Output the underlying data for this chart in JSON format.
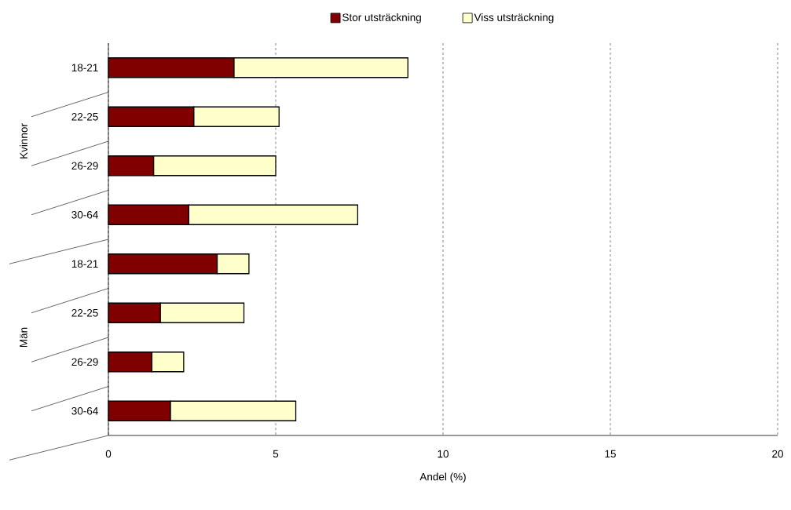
{
  "chart_data": {
    "type": "bar",
    "orientation": "horizontal",
    "stacked": true,
    "xlabel": "Andel (%)",
    "categories": [
      "18-21",
      "22-25",
      "26-29",
      "30-64",
      "18-21",
      "22-25",
      "26-29",
      "30-64"
    ],
    "annotations": [
      "Kvinnor",
      "Män"
    ],
    "series": [
      {
        "name": "Stor utsträckning",
        "color": "#800000",
        "values": [
          3.75,
          2.55,
          1.35,
          2.4,
          3.25,
          1.55,
          1.3,
          1.85
        ]
      },
      {
        "name": "Viss utsträckning",
        "color": "#ffffcc",
        "values": [
          5.2,
          2.55,
          3.65,
          5.05,
          0.95,
          2.5,
          0.95,
          3.75
        ]
      }
    ],
    "xlim": [
      0,
      20
    ],
    "xticks": [
      0,
      5,
      10,
      15,
      20
    ],
    "grid": "x",
    "legend": "top"
  }
}
